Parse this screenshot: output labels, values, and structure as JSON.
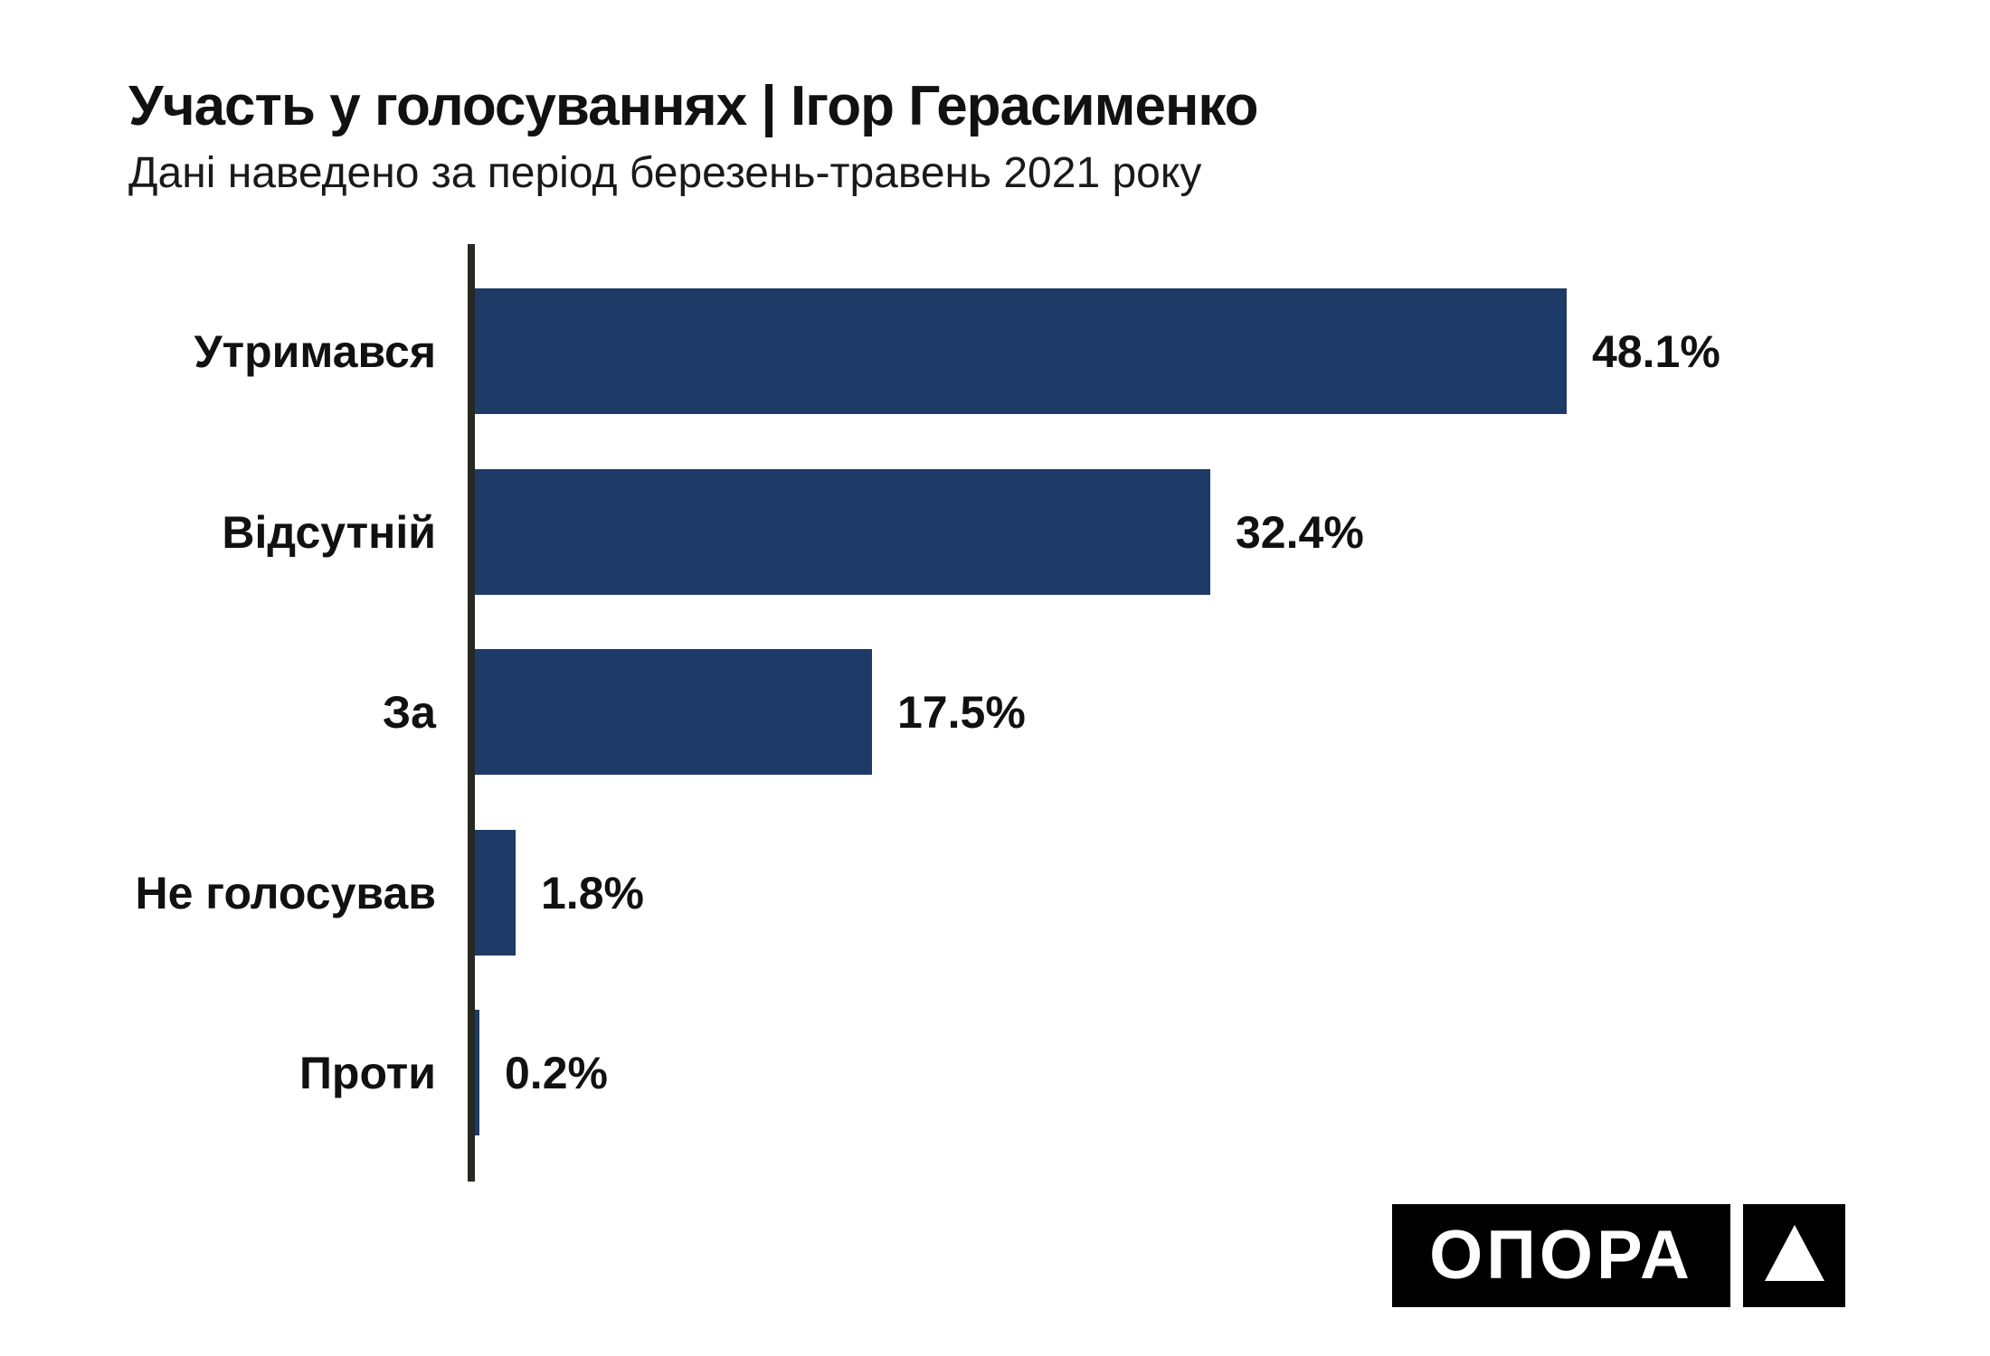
{
  "header": {
    "title": "Участь у голосуваннях | Ігор Герасименко",
    "subtitle": "Дані наведено за період березень-травень 2021 року"
  },
  "chart_data": {
    "type": "bar",
    "orientation": "horizontal",
    "title": "Участь у голосуваннях | Ігор Герасименко",
    "subtitle": "Дані наведено за період березень-травень 2021 року",
    "categories": [
      "Утримався",
      "Відсутній",
      "За",
      "Не голосував",
      "Проти"
    ],
    "values": [
      48.1,
      32.4,
      17.5,
      1.8,
      0.2
    ],
    "value_labels": [
      "48.1%",
      "32.4%",
      "17.5%",
      "1.8%",
      "0.2%"
    ],
    "xlim": [
      0,
      66.5
    ],
    "grid": false,
    "legend": false,
    "bar_color": "#1e3a66",
    "axis_color": "#262821",
    "text_color": "#111111"
  },
  "logo": {
    "text": "ОПОРА",
    "symbol": "triangle-icon"
  }
}
